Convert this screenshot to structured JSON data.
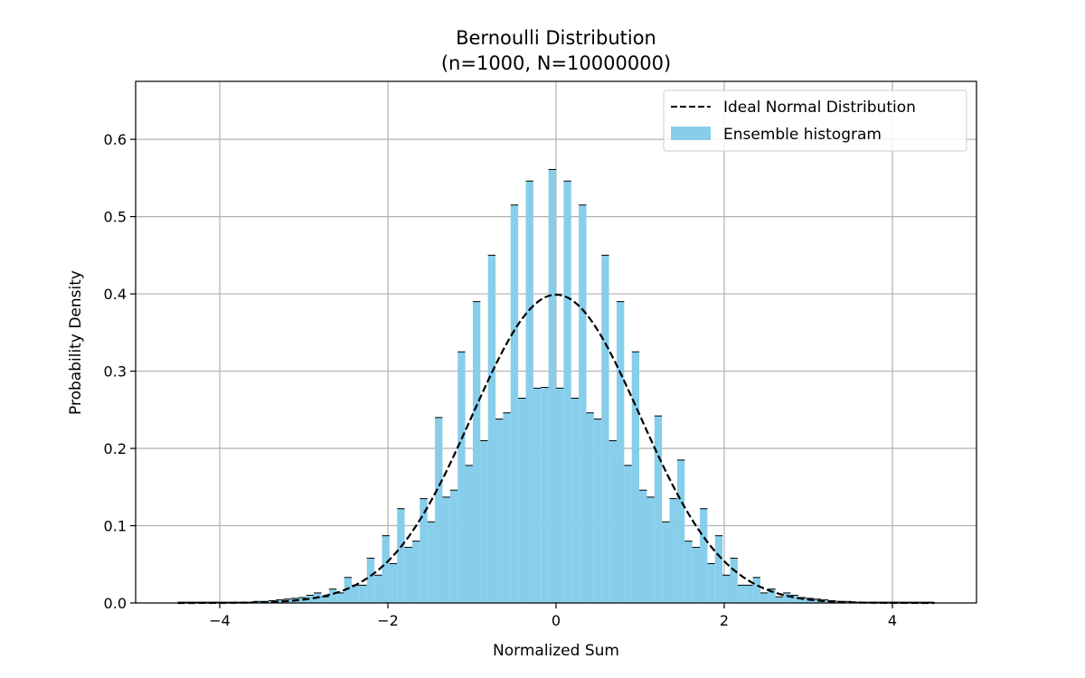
{
  "chart_data": {
    "type": "bar",
    "title": "Bernoulli Distribution",
    "subtitle": "(n=1000, N=10000000)",
    "xlabel": "Normalized Sum",
    "ylabel": "Probability Density",
    "xlim": [
      -5,
      5
    ],
    "ylim": [
      0,
      0.675
    ],
    "xticks": [
      -4,
      -2,
      0,
      2,
      4
    ],
    "xtick_labels": [
      "−4",
      "−2",
      "0",
      "2",
      "4"
    ],
    "yticks": [
      0.0,
      0.1,
      0.2,
      0.3,
      0.4,
      0.5,
      0.6
    ],
    "ytick_labels": [
      "0.0",
      "0.1",
      "0.2",
      "0.3",
      "0.4",
      "0.5",
      "0.6"
    ],
    "grid": true,
    "legend_position": "top-right",
    "histogram": {
      "name": "Ensemble histogram",
      "color": "#87ceeb",
      "edge_color": "#000000",
      "bin_range": [
        -4.5,
        4.5
      ],
      "bin_count": 100,
      "values": [
        0.001,
        0.001,
        0.001,
        0.001,
        0.001,
        0.001,
        0.001,
        0.001,
        0.001,
        0.001,
        0.002,
        0.002,
        0.003,
        0.004,
        0.005,
        0.006,
        0.007,
        0.01,
        0.013,
        0.008,
        0.018,
        0.013,
        0.033,
        0.023,
        0.023,
        0.058,
        0.036,
        0.087,
        0.051,
        0.122,
        0.072,
        0.08,
        0.135,
        0.105,
        0.24,
        0.137,
        0.146,
        0.325,
        0.178,
        0.39,
        0.21,
        0.45,
        0.238,
        0.246,
        0.515,
        0.265,
        0.546,
        0.278,
        0.279,
        0.561,
        0.278,
        0.546,
        0.265,
        0.515,
        0.246,
        0.238,
        0.45,
        0.21,
        0.39,
        0.178,
        0.325,
        0.146,
        0.137,
        0.242,
        0.105,
        0.135,
        0.185,
        0.08,
        0.072,
        0.122,
        0.051,
        0.087,
        0.036,
        0.058,
        0.023,
        0.023,
        0.033,
        0.013,
        0.018,
        0.008,
        0.013,
        0.01,
        0.007,
        0.006,
        0.005,
        0.004,
        0.003,
        0.002,
        0.002,
        0.001,
        0.001,
        0.001,
        0.001,
        0.001,
        0.001,
        0.001,
        0.001,
        0.001,
        0.001,
        0.001
      ]
    },
    "curve": {
      "name": "Ideal Normal Distribution",
      "color": "#000000",
      "style": "dashed",
      "function": "standard-normal-pdf",
      "x_range": [
        -4.5,
        4.5
      ]
    }
  }
}
